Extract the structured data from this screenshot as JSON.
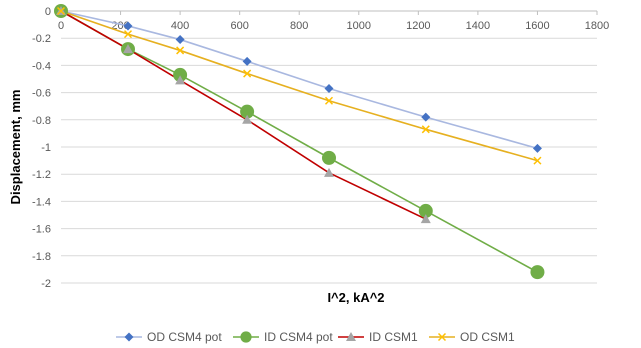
{
  "chart_data": {
    "type": "line",
    "title": "",
    "xlabel": "I^2, kA^2",
    "ylabel": "Displacement, mm",
    "xlim": [
      0,
      1800
    ],
    "ylim": [
      -2,
      0
    ],
    "x_ticks": [
      0,
      200,
      400,
      600,
      800,
      1000,
      1200,
      1400,
      1600,
      1800
    ],
    "y_ticks": [
      0,
      -0.2,
      -0.4,
      -0.6,
      -0.8,
      -1,
      -1.2,
      -1.4,
      -1.6,
      -1.8,
      -2
    ],
    "x_tick_labels": [
      "0",
      "200",
      "400",
      "600",
      "800",
      "1000",
      "1200",
      "1400",
      "1600",
      "1800"
    ],
    "y_tick_labels": [
      "0",
      "-0.2",
      "-0.4",
      "-0.6",
      "-0.8",
      "-1",
      "-1.2",
      "-1.4",
      "-1.6",
      "-1.8",
      "-2"
    ],
    "grid": "horizontal",
    "legend_position": "bottom",
    "series": [
      {
        "name": "OD CSM4 pot",
        "color": "#4472C4",
        "line_color": "#A9B8E0",
        "marker": "diamond",
        "x": [
          0,
          225,
          400,
          625,
          900,
          1225,
          1600
        ],
        "y": [
          0,
          -0.11,
          -0.21,
          -0.37,
          -0.57,
          -0.78,
          -1.01
        ]
      },
      {
        "name": "ID CSM4 pot",
        "color": "#70AD47",
        "line_color": "#70AD47",
        "marker": "circle",
        "x": [
          0,
          225,
          400,
          625,
          900,
          1225,
          1600
        ],
        "y": [
          0,
          -0.28,
          -0.47,
          -0.74,
          -1.08,
          -1.47,
          -1.92
        ]
      },
      {
        "name": "ID CSM1",
        "color": "#A5A5A5",
        "line_color": "#C00000",
        "marker": "triangle",
        "x": [
          0,
          225,
          400,
          625,
          900,
          1225
        ],
        "y": [
          0,
          -0.28,
          -0.51,
          -0.8,
          -1.19,
          -1.53
        ]
      },
      {
        "name": "OD CSM1",
        "color": "#FFC000",
        "line_color": "#E6B020",
        "marker": "x",
        "x": [
          0,
          225,
          400,
          625,
          900,
          1225,
          1600
        ],
        "y": [
          0,
          -0.17,
          -0.29,
          -0.46,
          -0.66,
          -0.87,
          -1.1
        ]
      }
    ]
  }
}
